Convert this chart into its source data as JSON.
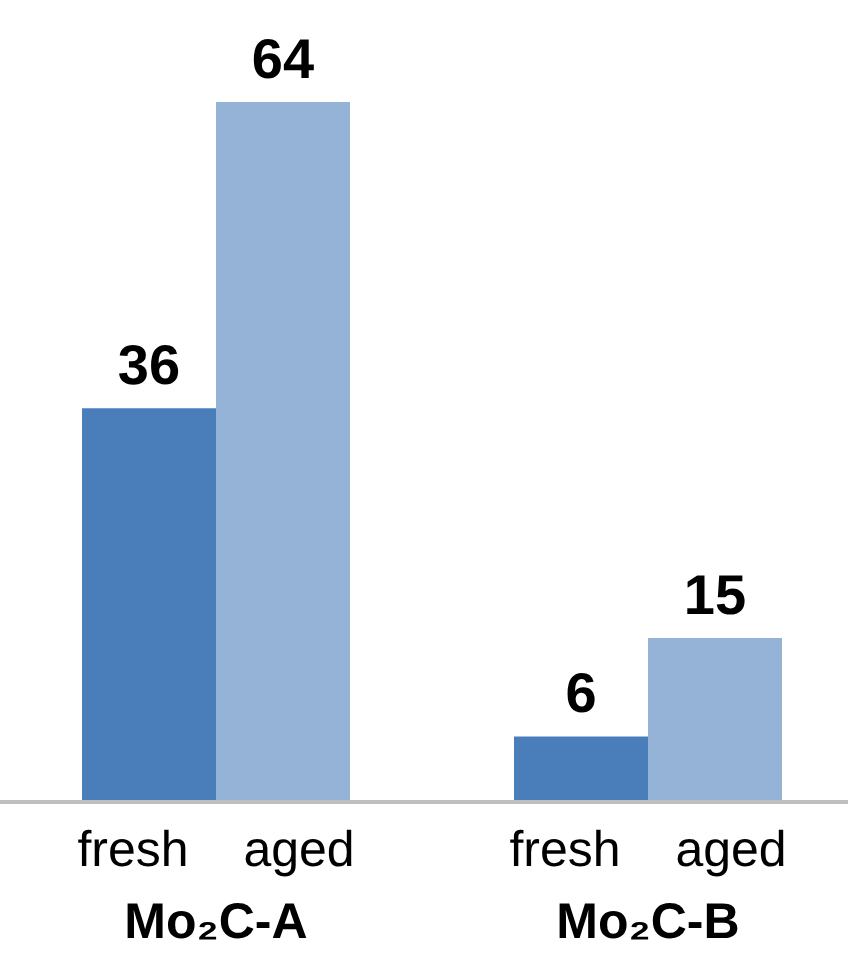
{
  "chart_data": {
    "type": "bar",
    "categories": [
      "Mo₂C-A",
      "Mo₂C-B"
    ],
    "series": [
      {
        "name": "fresh",
        "color": "#4a7ebb",
        "values": [
          36,
          6
        ]
      },
      {
        "name": "aged",
        "color": "#95b3d7",
        "values": [
          64,
          15
        ]
      }
    ],
    "data_labels": true,
    "legend": false,
    "grid": false
  }
}
